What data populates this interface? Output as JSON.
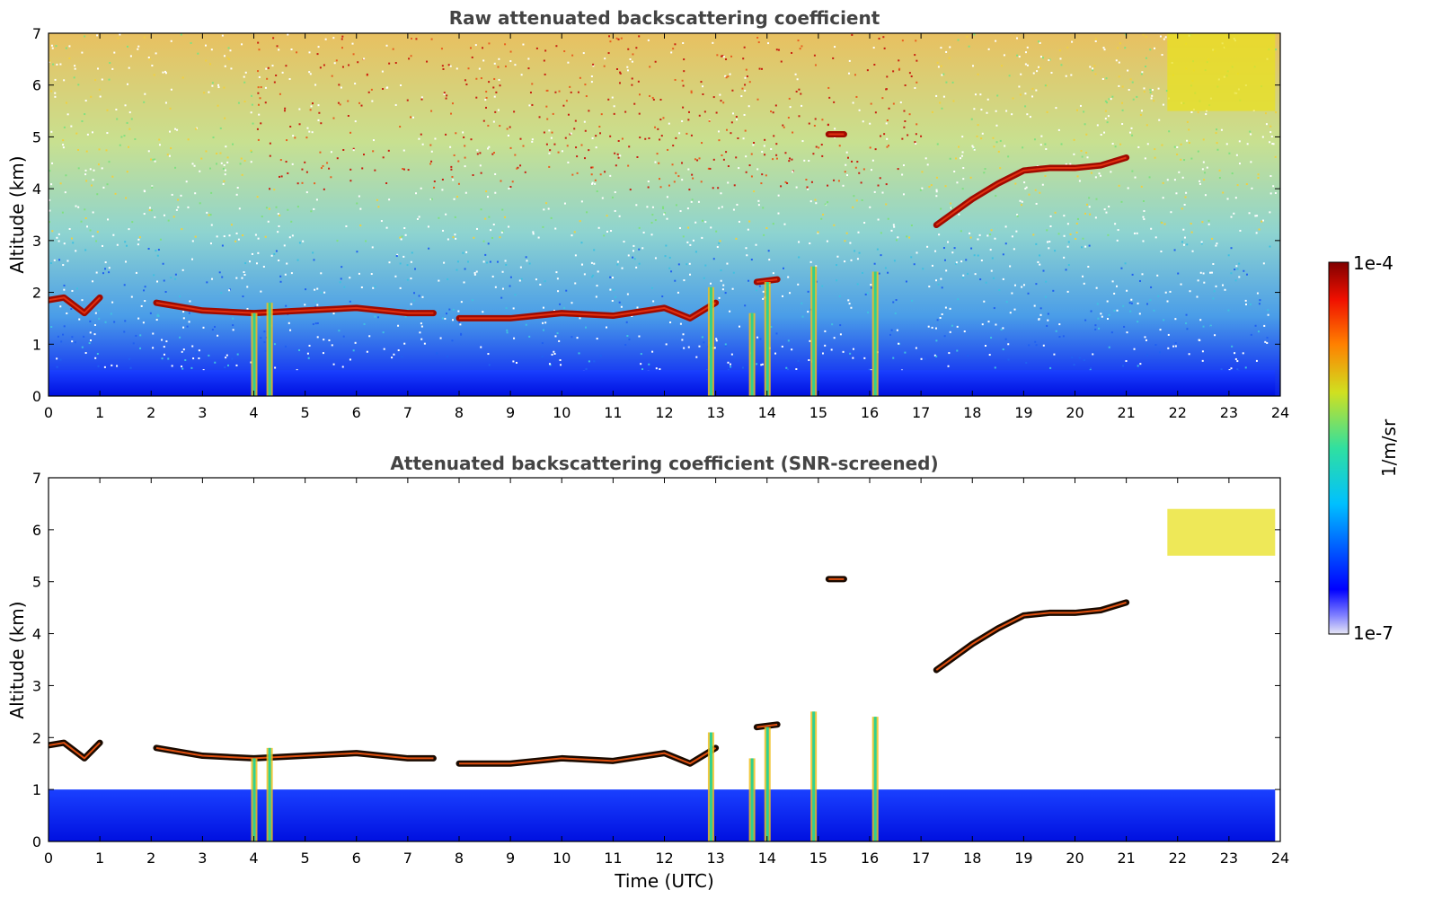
{
  "chart_data": [
    {
      "type": "heatmap",
      "title": "Raw attenuated backscattering coefficient",
      "xlabel": "",
      "ylabel": "Altitude (km)",
      "xlim": [
        0,
        24
      ],
      "ylim": [
        0,
        7
      ],
      "xticks": [
        "0",
        "1",
        "2",
        "3",
        "4",
        "5",
        "6",
        "7",
        "8",
        "9",
        "10",
        "11",
        "12",
        "13",
        "14",
        "15",
        "16",
        "17",
        "18",
        "19",
        "20",
        "21",
        "22",
        "23",
        "24"
      ],
      "yticks": [
        "0",
        "1",
        "2",
        "3",
        "4",
        "5",
        "6",
        "7"
      ],
      "screened": false,
      "background": "noisy field: blue near ground, cyan/green mid, yellow/red aloft",
      "features": [
        {
          "name": "boundary-layer aerosol",
          "x_range": [
            0,
            23.9
          ],
          "altitude_km": [
            0,
            0.5
          ]
        },
        {
          "name": "cloud layer (morning)",
          "x": [
            0,
            0.3,
            0.7,
            1.0
          ],
          "y": [
            1.85,
            1.9,
            1.6,
            1.9
          ]
        },
        {
          "name": "cloud layer",
          "x": [
            2.1,
            3.0,
            4.0,
            5.0,
            6.0,
            7.0,
            7.5
          ],
          "y": [
            1.8,
            1.65,
            1.6,
            1.65,
            1.7,
            1.6,
            1.6
          ]
        },
        {
          "name": "cloud layer",
          "x": [
            8.0,
            9.0,
            10.0,
            11.0,
            12.0,
            12.5,
            13.0
          ],
          "y": [
            1.5,
            1.5,
            1.6,
            1.55,
            1.7,
            1.5,
            1.8
          ]
        },
        {
          "name": "elevated cloud",
          "x": [
            13.8,
            14.2
          ],
          "y": [
            2.2,
            2.25
          ]
        },
        {
          "name": "elevated cloud",
          "x": [
            15.2,
            15.5
          ],
          "y": [
            5.05,
            5.05
          ]
        },
        {
          "name": "rising cloud layer",
          "x": [
            17.3,
            18.0,
            18.5,
            19.0,
            19.5,
            20.0,
            20.5,
            21.0
          ],
          "y": [
            3.3,
            3.8,
            4.1,
            4.35,
            4.4,
            4.4,
            4.45,
            4.6
          ]
        },
        {
          "name": "precipitation streaks",
          "x": [
            4.0,
            4.3,
            12.9,
            13.7,
            14.0,
            14.9,
            16.1
          ],
          "top_km": [
            1.6,
            1.8,
            2.1,
            1.6,
            2.2,
            2.5,
            2.4
          ]
        },
        {
          "name": "high cirrus (yellow)",
          "x_range": [
            21.8,
            23.9
          ],
          "altitude_km": [
            5.5,
            7.0
          ]
        }
      ]
    },
    {
      "type": "heatmap",
      "title": "Attenuated backscattering coefficient (SNR-screened)",
      "xlabel": "Time (UTC)",
      "ylabel": "Altitude (km)",
      "xlim": [
        0,
        24
      ],
      "ylim": [
        0,
        7
      ],
      "xticks": [
        "0",
        "1",
        "2",
        "3",
        "4",
        "5",
        "6",
        "7",
        "8",
        "9",
        "10",
        "11",
        "12",
        "13",
        "14",
        "15",
        "16",
        "17",
        "18",
        "19",
        "20",
        "21",
        "22",
        "23",
        "24"
      ],
      "yticks": [
        "0",
        "1",
        "2",
        "3",
        "4",
        "5",
        "6",
        "7"
      ],
      "screened": true,
      "background": "white (low-SNR pixels removed)",
      "features": [
        {
          "name": "boundary-layer aerosol",
          "x_range": [
            0,
            23.9
          ],
          "altitude_km": [
            0,
            1.0
          ]
        },
        {
          "name": "cloud layer (morning)",
          "x": [
            0,
            0.3,
            0.7,
            1.0
          ],
          "y": [
            1.85,
            1.9,
            1.6,
            1.9
          ]
        },
        {
          "name": "cloud layer",
          "x": [
            2.1,
            3.0,
            4.0,
            5.0,
            6.0,
            7.0,
            7.5
          ],
          "y": [
            1.8,
            1.65,
            1.6,
            1.65,
            1.7,
            1.6,
            1.6
          ]
        },
        {
          "name": "cloud layer",
          "x": [
            8.0,
            9.0,
            10.0,
            11.0,
            12.0,
            12.5,
            13.0
          ],
          "y": [
            1.5,
            1.5,
            1.6,
            1.55,
            1.7,
            1.5,
            1.8
          ]
        },
        {
          "name": "elevated cloud",
          "x": [
            13.8,
            14.2
          ],
          "y": [
            2.2,
            2.25
          ]
        },
        {
          "name": "elevated cloud",
          "x": [
            15.2,
            15.5
          ],
          "y": [
            5.05,
            5.05
          ]
        },
        {
          "name": "rising cloud layer",
          "x": [
            17.3,
            18.0,
            18.5,
            19.0,
            19.5,
            20.0,
            20.5,
            21.0
          ],
          "y": [
            3.3,
            3.8,
            4.1,
            4.35,
            4.4,
            4.4,
            4.45,
            4.6
          ]
        },
        {
          "name": "precipitation streaks",
          "x": [
            4.0,
            4.3,
            12.9,
            13.7,
            14.0,
            14.9,
            16.1
          ],
          "top_km": [
            1.6,
            1.8,
            2.1,
            1.6,
            2.2,
            2.5,
            2.4
          ]
        },
        {
          "name": "high cirrus (yellow)",
          "x_range": [
            21.8,
            23.9
          ],
          "altitude_km": [
            5.5,
            6.4
          ]
        }
      ]
    }
  ],
  "colorbar": {
    "label": "1/m/sr",
    "max_label": "1e-4",
    "min_label": "1e-7",
    "range": [
      1e-07,
      0.0001
    ],
    "scale": "log",
    "colormap": "jet"
  }
}
